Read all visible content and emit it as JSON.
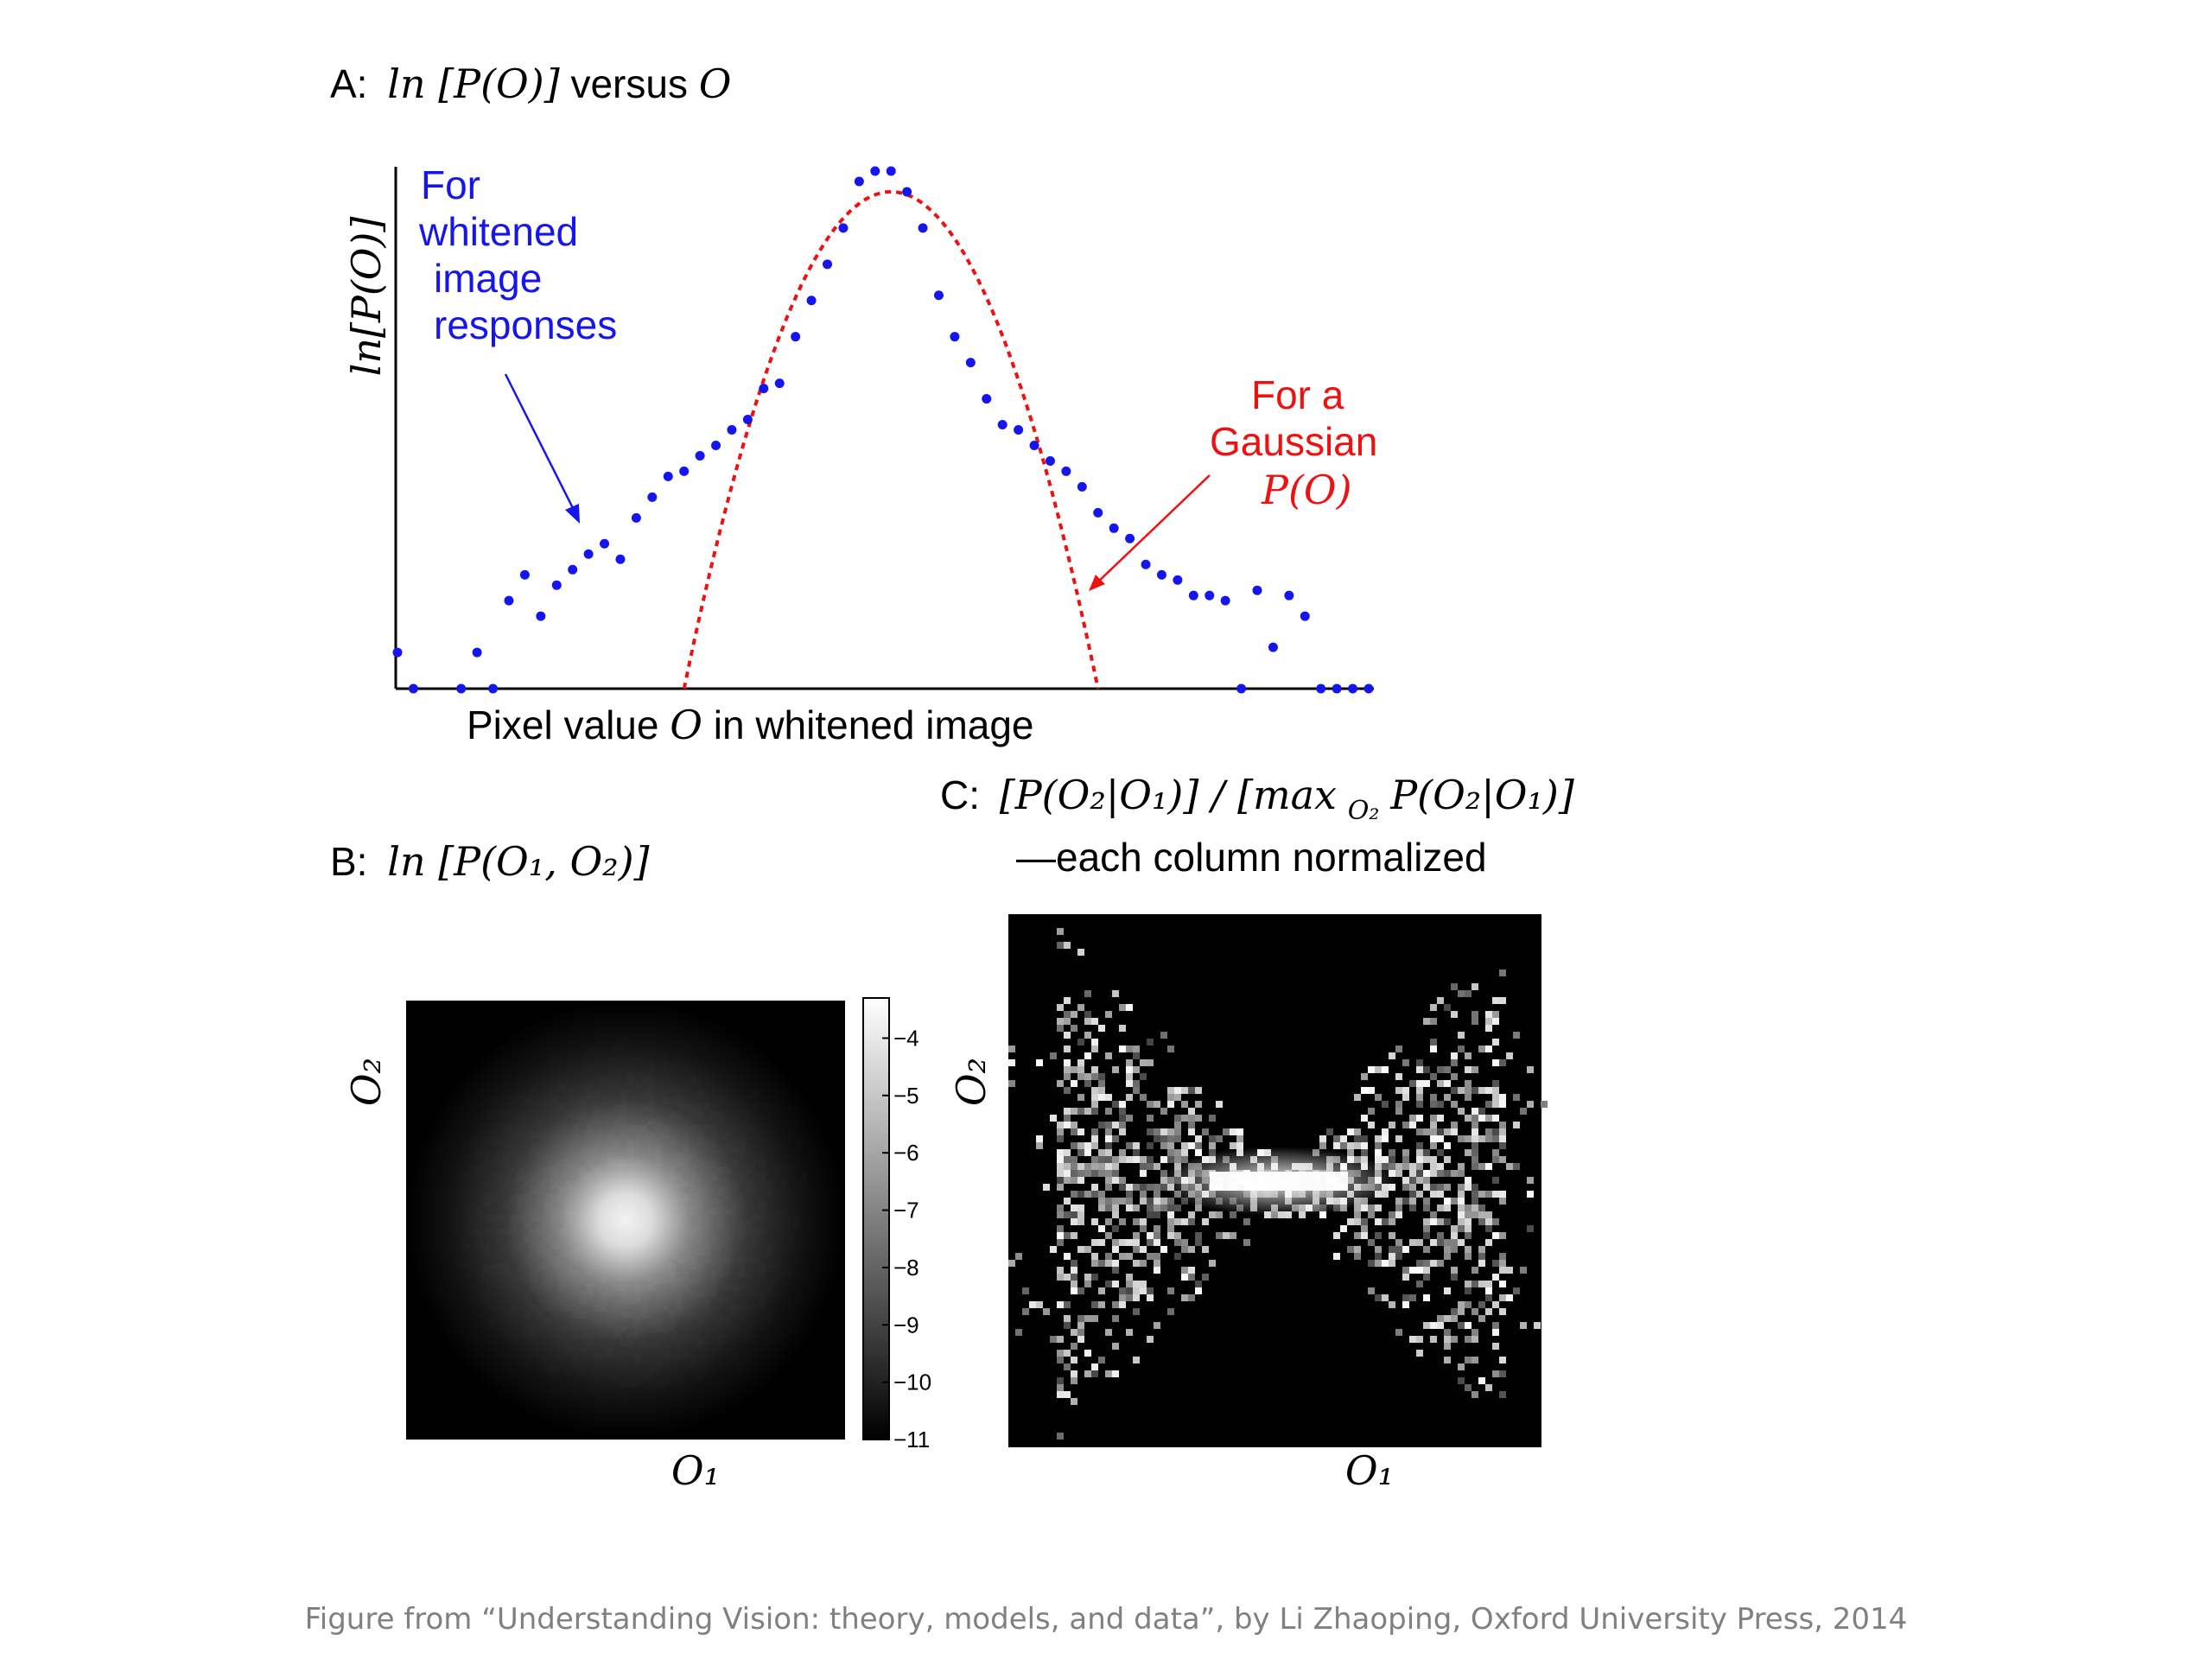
{
  "colors": {
    "blue": "#1515ee",
    "red": "#ee1111",
    "black": "#000000",
    "caption": "#808080"
  },
  "panel_a": {
    "label": "A:",
    "title_math": "ln [P(O)]",
    "title_mid": " versus ",
    "title_var": "O",
    "ylabel": "ln[P(O)]",
    "xlabel_pre": "Pixel value ",
    "xlabel_var": "O",
    "xlabel_post": " in whitened image",
    "blue_annotation": [
      "For",
      "whitened",
      "image",
      "responses"
    ],
    "red_annotation": [
      "For a",
      "Gaussian",
      "P(O)"
    ]
  },
  "panel_b": {
    "label": "B:",
    "title_math": "ln [P(O₁, O₂)]",
    "xlabel": "O₁",
    "ylabel": "O₂",
    "colorbar_ticks": [
      "−4",
      "−5",
      "−6",
      "−7",
      "−8",
      "−9",
      "−10",
      "−11"
    ]
  },
  "panel_c": {
    "label": "C:",
    "title_line1": "[P(O₂|O₁)] / [max",
    "title_sub": "O₂",
    "title_line1b": " P(O₂|O₁)]",
    "title_line2": "—each column normalized",
    "xlabel": "O₁",
    "ylabel": "O₂"
  },
  "footer": "Figure from  “Understanding Vision: theory, models, and data”, by Li Zhaoping,  Oxford University Press, 2014",
  "chart_data": [
    {
      "type": "scatter",
      "title": "A: ln [P(O)] versus O",
      "xlabel": "Pixel value O in whitened image",
      "ylabel": "ln[P(O)]",
      "series": [
        {
          "name": "For whitened image responses",
          "x": [
            0,
            0.5,
            2,
            2.5,
            3,
            3.5,
            4,
            4.5,
            5,
            5.5,
            6,
            6.5,
            7,
            7.5,
            8,
            8.5,
            9,
            9.5,
            10,
            10.5,
            11,
            11.5,
            12,
            12.5,
            13,
            13.5,
            14,
            14.5,
            15,
            15.5,
            16,
            16.5,
            17,
            17.5,
            18,
            18.5,
            19,
            19.5,
            20,
            20.5,
            21,
            21.5,
            22,
            22.5,
            23,
            23.5,
            24,
            24.5,
            25,
            25.5,
            26,
            26.5,
            27,
            27.5,
            28,
            28.5,
            29,
            29.5,
            30,
            30.5
          ],
          "y": [
            0.07,
            0,
            0,
            0.07,
            0,
            0.17,
            0.22,
            0.14,
            0.2,
            0.23,
            0.26,
            0.28,
            0.25,
            0.33,
            0.37,
            0.41,
            0.42,
            0.45,
            0.47,
            0.5,
            0.52,
            0.58,
            0.59,
            0.68,
            0.75,
            0.82,
            0.89,
            0.98,
            1.0,
            1.0,
            0.96,
            0.89,
            0.76,
            0.68,
            0.63,
            0.56,
            0.51,
            0.5,
            0.47,
            0.44,
            0.42,
            0.39,
            0.34,
            0.31,
            0.29,
            0.24,
            0.22,
            0.21,
            0.18,
            0.18,
            0.17,
            0.0,
            0.19,
            0.08,
            0.18,
            0.14,
            0.0,
            0.0,
            0.0,
            0.0
          ]
        },
        {
          "name": "For a Gaussian P(O)",
          "curve": "gaussian",
          "peak_x": 15.5,
          "peak_y": 0.96,
          "zero_crossings": [
            9,
            22
          ]
        }
      ]
    },
    {
      "type": "heatmap",
      "title": "B: ln [P(O1, O2)]",
      "xlabel": "O1",
      "ylabel": "O2",
      "colorbar_range": [
        -11,
        -3.3
      ],
      "colorbar_ticks": [
        -4,
        -5,
        -6,
        -7,
        -8,
        -9,
        -10,
        -11
      ],
      "cmap": "gray",
      "description_values": {
        "center": -3.5,
        "background": -11
      }
    },
    {
      "type": "heatmap",
      "title": "C: [P(O2|O1)] / [max_O2 P(O2|O1)] —each column normalized",
      "xlabel": "O1",
      "ylabel": "O2",
      "cmap": "gray",
      "shape": "bow-tie, bright horizontal band at center"
    }
  ]
}
